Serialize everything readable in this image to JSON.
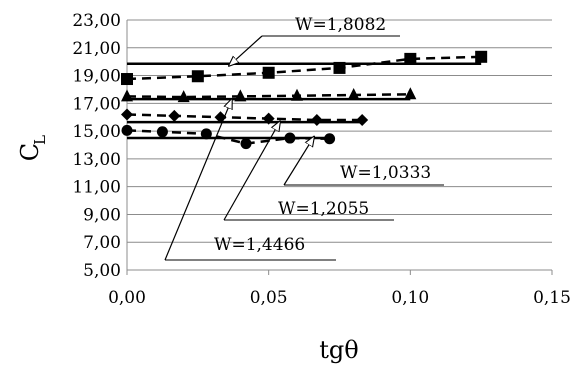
{
  "chart_data": {
    "type": "line",
    "xlabel": "tgθ",
    "ylabel_main": "C",
    "ylabel_sub": "L",
    "xlim": [
      0,
      0.15
    ],
    "ylim": [
      5,
      23
    ],
    "x_ticks": [
      "0,00",
      "0,05",
      "0,10",
      "0,15"
    ],
    "y_ticks": [
      "5,00",
      "7,00",
      "9,00",
      "11,00",
      "13,00",
      "15,00",
      "17,00",
      "19,00",
      "21,00",
      "23,00"
    ],
    "grid": "horizontal",
    "series": [
      {
        "marker": "square",
        "points": [
          [
            0.0,
            18.75
          ],
          [
            0.025,
            18.95
          ],
          [
            0.05,
            19.2
          ],
          [
            0.075,
            19.55
          ],
          [
            0.1,
            20.2
          ],
          [
            0.125,
            20.35
          ]
        ],
        "reference_line": {
          "y": 19.85,
          "x_range": [
            0.0,
            0.125
          ]
        },
        "annotation": {
          "label": "W=1,8082",
          "target": [
            0.036,
            19.7
          ]
        }
      },
      {
        "marker": "triangle",
        "points": [
          [
            0.0,
            17.5
          ],
          [
            0.02,
            17.45
          ],
          [
            0.04,
            17.5
          ],
          [
            0.06,
            17.55
          ],
          [
            0.08,
            17.6
          ],
          [
            0.1,
            17.65
          ]
        ],
        "reference_line": {
          "y": 17.3,
          "x_range": [
            0.0,
            0.1
          ]
        },
        "annotation": {
          "label": "W=1,4466",
          "target": [
            0.037,
            17.3
          ]
        }
      },
      {
        "marker": "diamond",
        "points": [
          [
            0.0,
            16.2
          ],
          [
            0.0167,
            16.1
          ],
          [
            0.033,
            16.0
          ],
          [
            0.05,
            15.9
          ],
          [
            0.067,
            15.8
          ],
          [
            0.083,
            15.8
          ]
        ],
        "reference_line": {
          "y": 15.65,
          "x_range": [
            0.0,
            0.083
          ]
        },
        "annotation": {
          "label": "W=1,2055",
          "target": [
            0.054,
            15.7
          ]
        }
      },
      {
        "marker": "circle",
        "points": [
          [
            0.0,
            15.05
          ],
          [
            0.0125,
            14.95
          ],
          [
            0.028,
            14.8
          ],
          [
            0.042,
            14.1
          ],
          [
            0.0575,
            14.5
          ],
          [
            0.0715,
            14.45
          ]
        ],
        "reference_line": {
          "y": 14.5,
          "x_range": [
            0.0,
            0.0715
          ]
        },
        "annotation": {
          "label": "W=1,0333",
          "target": [
            0.066,
            14.6
          ]
        }
      }
    ]
  }
}
